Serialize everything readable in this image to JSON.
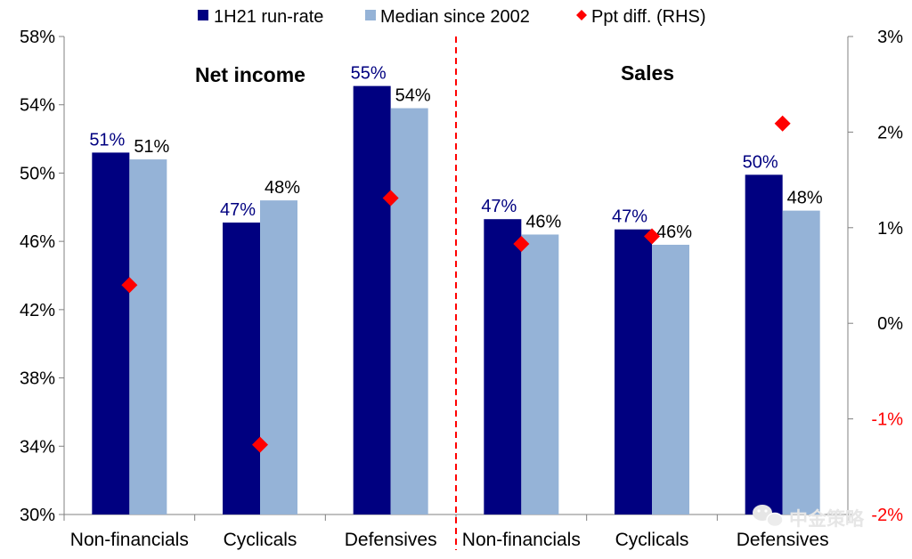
{
  "chart_data": {
    "type": "bar",
    "legend": {
      "placement": "top",
      "entries": [
        {
          "label": "1H21 run-rate",
          "color": "#000080",
          "marker": "square"
        },
        {
          "label": "Median since 2002",
          "color": "#95B3D7",
          "marker": "square"
        },
        {
          "label": "Ppt diff. (RHS)",
          "color": "#FF0000",
          "marker": "diamond"
        }
      ]
    },
    "panels": [
      {
        "title": "Net income",
        "categories": [
          "Non-financials",
          "Cyclicals",
          "Defensives"
        ]
      },
      {
        "title": "Sales",
        "categories": [
          "Non-financials",
          "Cyclicals",
          "Defensives"
        ]
      }
    ],
    "categories": [
      "Non-financials",
      "Cyclicals",
      "Defensives",
      "Non-financials",
      "Cyclicals",
      "Defensives"
    ],
    "series": [
      {
        "name": "1H21 run-rate",
        "axis": "left",
        "type": "bar",
        "color": "#000080",
        "values": [
          51.2,
          47.1,
          55.1,
          47.3,
          46.7,
          49.9
        ],
        "labels": [
          "51%",
          "47%",
          "55%",
          "47%",
          "47%",
          "50%"
        ],
        "label_color": "#000080"
      },
      {
        "name": "Median since 2002",
        "axis": "left",
        "type": "bar",
        "color": "#95B3D7",
        "values": [
          50.8,
          48.4,
          53.8,
          46.4,
          45.8,
          47.8
        ],
        "labels": [
          "51%",
          "48%",
          "54%",
          "46%",
          "46%",
          "48%"
        ],
        "label_color": "#000000"
      },
      {
        "name": "Ppt diff. (RHS)",
        "axis": "right",
        "type": "scatter",
        "marker": "diamond",
        "color": "#FF0000",
        "values": [
          0.4,
          -1.27,
          1.31,
          0.83,
          0.91,
          2.09
        ]
      }
    ],
    "y_left": {
      "min": 30,
      "max": 58,
      "ticks": [
        30,
        34,
        38,
        42,
        46,
        50,
        54,
        58
      ],
      "tick_labels": [
        "30%",
        "34%",
        "38%",
        "42%",
        "46%",
        "50%",
        "54%",
        "58%"
      ]
    },
    "y_right": {
      "min": -2,
      "max": 3,
      "ticks": [
        -2,
        -1,
        0,
        1,
        2,
        3
      ],
      "tick_labels": [
        "-2%",
        "-1%",
        "0%",
        "1%",
        "2%",
        "3%"
      ],
      "negative_color": "#FF0000",
      "positive_color": "#000000"
    },
    "divider": {
      "after_category_index": 2,
      "style": "dashed",
      "color": "#FF0000"
    },
    "grid": false,
    "watermark": "中金策略"
  }
}
